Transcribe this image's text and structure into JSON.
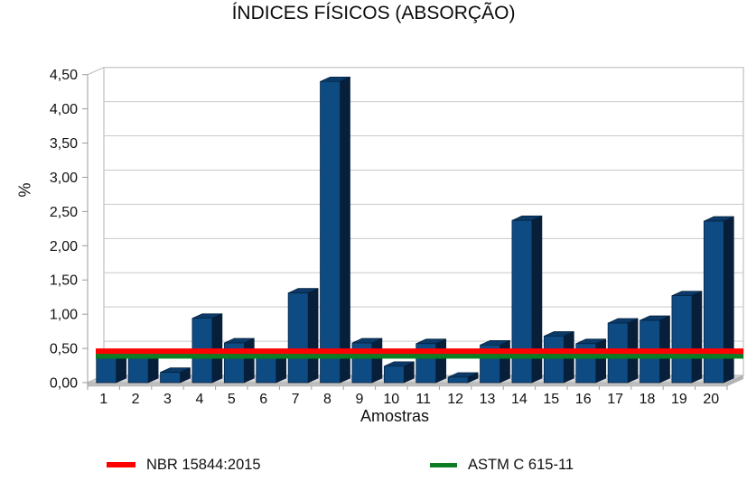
{
  "title": "ÍNDICES FÍSICOS (ABSORÇÃO)",
  "chart_data": {
    "type": "bar",
    "style": "3d-bars",
    "title": "ÍNDICES FÍSICOS (ABSORÇÃO)",
    "xlabel": "Amostras",
    "ylabel": "%",
    "ylim": [
      0,
      4.5
    ],
    "y_tick_step": 0.5,
    "y_tick_labels": [
      "0,00",
      "0,50",
      "1,00",
      "1,50",
      "2,00",
      "2,50",
      "3,00",
      "3,50",
      "4,00",
      "4,50"
    ],
    "categories": [
      "1",
      "2",
      "3",
      "4",
      "5",
      "6",
      "7",
      "8",
      "9",
      "10",
      "11",
      "12",
      "13",
      "14",
      "15",
      "16",
      "17",
      "18",
      "19",
      "20"
    ],
    "values": [
      0.42,
      0.42,
      0.15,
      0.94,
      0.58,
      0.42,
      1.31,
      4.4,
      0.58,
      0.24,
      0.57,
      0.08,
      0.55,
      2.37,
      0.68,
      0.57,
      0.87,
      0.91,
      1.27,
      2.36
    ],
    "grid": true,
    "legend_position": "bottom",
    "bar_colors": {
      "front": "#0E4B82",
      "top": "#0B3A68",
      "side": "#071F3A",
      "outline": "#05203C"
    },
    "reference_lines": [
      {
        "label": "NBR 15844:2015",
        "value": 0.46,
        "color": "#FF0000"
      },
      {
        "label": "ASTM C 615-11",
        "value": 0.39,
        "color": "#0E7C22"
      }
    ]
  }
}
